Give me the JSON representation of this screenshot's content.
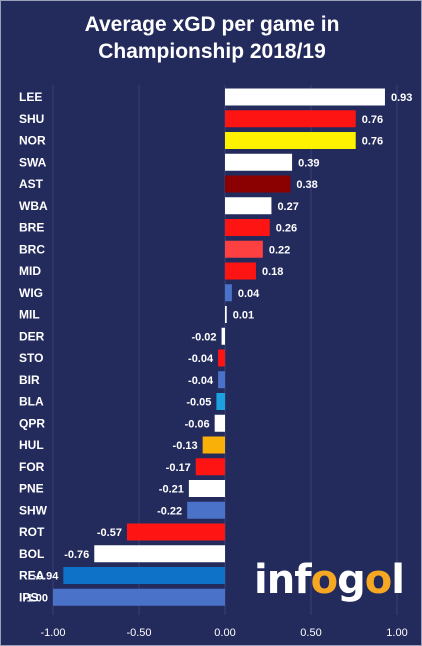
{
  "chart_data": {
    "type": "bar",
    "orientation": "horizontal",
    "title": "Average xGD per game in\nChampionship 2018/19",
    "categories": [
      "LEE",
      "SHU",
      "NOR",
      "SWA",
      "AST",
      "WBA",
      "BRE",
      "BRC",
      "MID",
      "WIG",
      "MIL",
      "DER",
      "STO",
      "BIR",
      "BLA",
      "QPR",
      "HUL",
      "FOR",
      "PNE",
      "SHW",
      "ROT",
      "BOL",
      "REA",
      "IPS"
    ],
    "values": [
      0.93,
      0.76,
      0.76,
      0.39,
      0.38,
      0.27,
      0.26,
      0.22,
      0.18,
      0.04,
      0.01,
      -0.02,
      -0.04,
      -0.04,
      -0.05,
      -0.06,
      -0.13,
      -0.17,
      -0.21,
      -0.22,
      -0.57,
      -0.76,
      -0.94,
      -1.0
    ],
    "value_labels": [
      "0.93",
      "0.76",
      "0.76",
      "0.39",
      "0.38",
      "0.27",
      "0.26",
      "0.22",
      "0.18",
      "0.04",
      "0.01",
      "-0.02",
      "-0.04",
      "-0.04",
      "-0.05",
      "-0.06",
      "-0.13",
      "-0.17",
      "-0.21",
      "-0.22",
      "-0.57",
      "-0.76",
      "-0.94",
      "-1.00"
    ],
    "colors": [
      "#ffffff",
      "#ff1414",
      "#fff200",
      "#ffffff",
      "#8b0000",
      "#ffffff",
      "#ff1414",
      "#ff4040",
      "#ff1414",
      "#4a72c8",
      "#ffffff",
      "#ffffff",
      "#ff1414",
      "#4a72c8",
      "#1ca0e0",
      "#ffffff",
      "#f9b10a",
      "#ff1414",
      "#ffffff",
      "#4a72c8",
      "#ff1414",
      "#ffffff",
      "#0d72c8",
      "#4a72c8"
    ],
    "xlim": [
      -1.0,
      1.0
    ],
    "xticks": [
      -1.0,
      -0.5,
      0.0,
      0.5,
      1.0
    ],
    "xtick_labels": [
      "-1.00",
      "-0.50",
      "0.00",
      "0.50",
      "1.00"
    ],
    "grid": true,
    "xlabel": "",
    "ylabel": ""
  },
  "branding": {
    "logo_text": "infogol"
  }
}
